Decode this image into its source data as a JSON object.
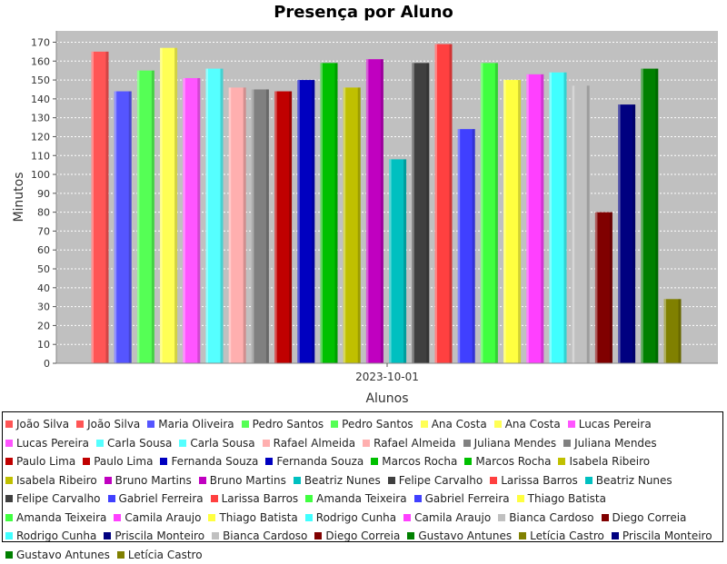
{
  "chart_data": {
    "type": "bar",
    "title": "Presença por Aluno",
    "xlabel": "Alunos",
    "ylabel": "Minutos",
    "categories": [
      "2023-10-01"
    ],
    "ylim": [
      0,
      176
    ],
    "yticks": [
      0,
      10,
      20,
      30,
      40,
      50,
      60,
      70,
      80,
      90,
      100,
      110,
      120,
      130,
      140,
      150,
      160,
      170
    ],
    "grid": true,
    "legend_position": "bottom",
    "series": [
      {
        "name": "João Silva",
        "value": 165,
        "color": "#ff5555"
      },
      {
        "name": "Maria Oliveira",
        "value": 144,
        "color": "#5555ff"
      },
      {
        "name": "Pedro Santos",
        "value": 155,
        "color": "#55ff55"
      },
      {
        "name": "Ana Costa",
        "value": 167,
        "color": "#ffff55"
      },
      {
        "name": "Lucas Pereira",
        "value": 151,
        "color": "#ff55ff"
      },
      {
        "name": "Carla Sousa",
        "value": 156,
        "color": "#55ffff"
      },
      {
        "name": "Rafael Almeida",
        "value": 146,
        "color": "#ffafaf"
      },
      {
        "name": "Juliana Mendes",
        "value": 145,
        "color": "#808080"
      },
      {
        "name": "Paulo Lima",
        "value": 144,
        "color": "#c00000"
      },
      {
        "name": "Fernanda Souza",
        "value": 150,
        "color": "#0000c0"
      },
      {
        "name": "Marcos Rocha",
        "value": 159,
        "color": "#00c000"
      },
      {
        "name": "Isabela Ribeiro",
        "value": 146,
        "color": "#c0c000"
      },
      {
        "name": "Bruno Martins",
        "value": 161,
        "color": "#c000c0"
      },
      {
        "name": "Beatriz Nunes",
        "value": 108,
        "color": "#00c0c0"
      },
      {
        "name": "Felipe Carvalho",
        "value": 159,
        "color": "#404040"
      },
      {
        "name": "Larissa Barros",
        "value": 169,
        "color": "#ff4040"
      },
      {
        "name": "Gabriel Ferreira",
        "value": 124,
        "color": "#4040ff"
      },
      {
        "name": "Amanda Teixeira",
        "value": 159,
        "color": "#40ff40"
      },
      {
        "name": "Thiago Batista",
        "value": 150,
        "color": "#ffff40"
      },
      {
        "name": "Camila Araujo",
        "value": 153,
        "color": "#ff40ff"
      },
      {
        "name": "Rodrigo Cunha",
        "value": 154,
        "color": "#40ffff"
      },
      {
        "name": "Bianca Cardoso",
        "value": 147,
        "color": "#c0c0c0"
      },
      {
        "name": "Diego Correia",
        "value": 80,
        "color": "#800000"
      },
      {
        "name": "Priscila Monteiro",
        "value": 137,
        "color": "#000080"
      },
      {
        "name": "Gustavo Antunes",
        "value": 156,
        "color": "#008000"
      },
      {
        "name": "Letícia Castro",
        "value": 34,
        "color": "#808000"
      }
    ],
    "legend": [
      {
        "name": "João Silva",
        "color": "#ff5555"
      },
      {
        "name": "João Silva",
        "color": "#ff5555"
      },
      {
        "name": "Maria Oliveira",
        "color": "#5555ff"
      },
      {
        "name": "Pedro Santos",
        "color": "#55ff55"
      },
      {
        "name": "Pedro Santos",
        "color": "#55ff55"
      },
      {
        "name": "Ana Costa",
        "color": "#ffff55"
      },
      {
        "name": "Ana Costa",
        "color": "#ffff55"
      },
      {
        "name": "Lucas Pereira",
        "color": "#ff55ff"
      },
      {
        "name": "Lucas Pereira",
        "color": "#ff55ff"
      },
      {
        "name": "Carla Sousa",
        "color": "#55ffff"
      },
      {
        "name": "Carla Sousa",
        "color": "#55ffff"
      },
      {
        "name": "Rafael Almeida",
        "color": "#ffafaf"
      },
      {
        "name": "Rafael Almeida",
        "color": "#ffafaf"
      },
      {
        "name": "Juliana Mendes",
        "color": "#808080"
      },
      {
        "name": "Juliana Mendes",
        "color": "#808080"
      },
      {
        "name": "Paulo Lima",
        "color": "#c00000"
      },
      {
        "name": "Paulo Lima",
        "color": "#c00000"
      },
      {
        "name": "Fernanda Souza",
        "color": "#0000c0"
      },
      {
        "name": "Fernanda Souza",
        "color": "#0000c0"
      },
      {
        "name": "Marcos Rocha",
        "color": "#00c000"
      },
      {
        "name": "Marcos Rocha",
        "color": "#00c000"
      },
      {
        "name": "Isabela Ribeiro",
        "color": "#c0c000"
      },
      {
        "name": "Isabela Ribeiro",
        "color": "#c0c000"
      },
      {
        "name": "Bruno Martins",
        "color": "#c000c0"
      },
      {
        "name": "Bruno Martins",
        "color": "#c000c0"
      },
      {
        "name": "Beatriz Nunes",
        "color": "#00c0c0"
      },
      {
        "name": "Felipe Carvalho",
        "color": "#404040"
      },
      {
        "name": "Larissa Barros",
        "color": "#ff4040"
      },
      {
        "name": "Beatriz Nunes",
        "color": "#00c0c0"
      },
      {
        "name": "Felipe Carvalho",
        "color": "#404040"
      },
      {
        "name": "Gabriel Ferreira",
        "color": "#4040ff"
      },
      {
        "name": "Larissa Barros",
        "color": "#ff4040"
      },
      {
        "name": "Amanda Teixeira",
        "color": "#40ff40"
      },
      {
        "name": "Gabriel Ferreira",
        "color": "#4040ff"
      },
      {
        "name": "Thiago Batista",
        "color": "#ffff40"
      },
      {
        "name": "Amanda Teixeira",
        "color": "#40ff40"
      },
      {
        "name": "Camila Araujo",
        "color": "#ff40ff"
      },
      {
        "name": "Thiago Batista",
        "color": "#ffff40"
      },
      {
        "name": "Rodrigo Cunha",
        "color": "#40ffff"
      },
      {
        "name": "Camila Araujo",
        "color": "#ff40ff"
      },
      {
        "name": "Bianca Cardoso",
        "color": "#c0c0c0"
      },
      {
        "name": "Diego Correia",
        "color": "#800000"
      },
      {
        "name": "Rodrigo Cunha",
        "color": "#40ffff"
      },
      {
        "name": "Priscila Monteiro",
        "color": "#000080"
      },
      {
        "name": "Bianca Cardoso",
        "color": "#c0c0c0"
      },
      {
        "name": "Diego Correia",
        "color": "#800000"
      },
      {
        "name": "Gustavo Antunes",
        "color": "#008000"
      },
      {
        "name": "Letícia Castro",
        "color": "#808000"
      },
      {
        "name": "Priscila Monteiro",
        "color": "#000080"
      },
      {
        "name": "Gustavo Antunes",
        "color": "#008000"
      },
      {
        "name": "Letícia Castro",
        "color": "#808000"
      }
    ]
  }
}
